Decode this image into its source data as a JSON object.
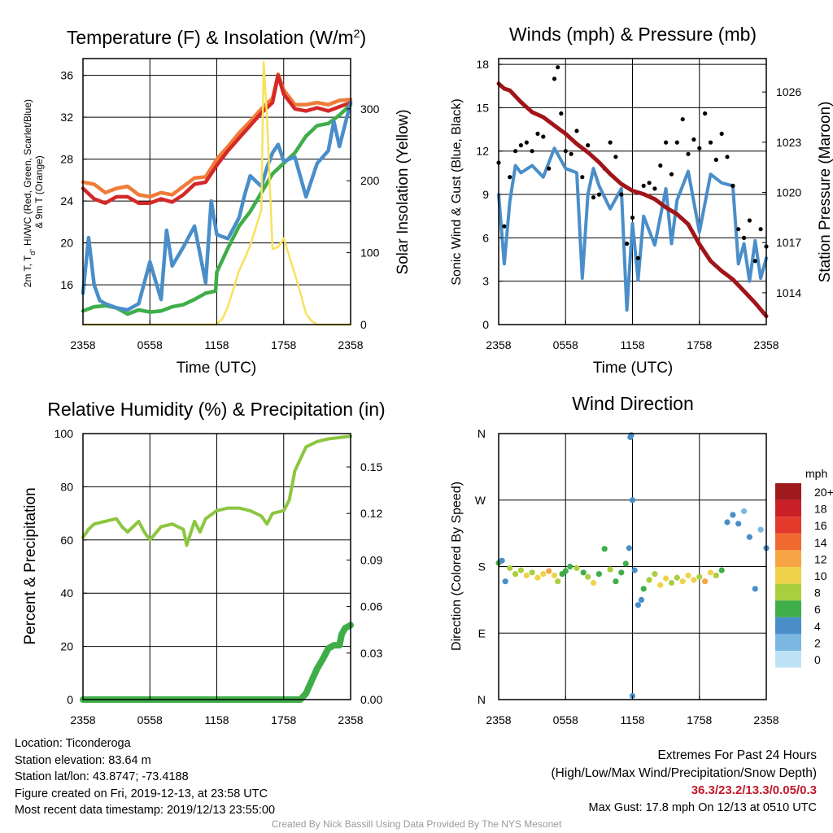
{
  "colors": {
    "red": "#d42828",
    "orange": "#f07c3a",
    "green": "#3fae49",
    "blue": "#4a8ec9",
    "yellow": "#f7e25c",
    "black": "#000000",
    "maroon": "#a1151a",
    "rh": "#8cc63f",
    "precip": "#3fae49",
    "extremes": "#c0192c",
    "credit": "#9a9a9a"
  },
  "chart_data": [
    {
      "id": "temp",
      "type": "line",
      "title": "Temperature (F) & Insolation (W/m²)",
      "xlabel": "Time (UTC)",
      "ylabel_left_lines": [
        "2m T, T",
        "HI/WC (Red, Green, Scarlet/Blue)",
        "& 9m T (Orange)"
      ],
      "ylabel_left_sub": "d",
      "ylabel_right": "Solar Insolation (Yellow)",
      "x_ticks": [
        "2358",
        "0558",
        "1158",
        "1758",
        "2358"
      ],
      "x_range": [
        0,
        24
      ],
      "y_left_range": [
        12.2,
        37.6
      ],
      "y_left_ticks": [
        16,
        20,
        24,
        28,
        32,
        36
      ],
      "y_right_range": [
        0,
        370
      ],
      "y_right_ticks": [
        0,
        100,
        200,
        300
      ],
      "series": [
        {
          "color": "orange",
          "axis": "left",
          "x": [
            0,
            1,
            2,
            3,
            4,
            5,
            6,
            7,
            8,
            9,
            10,
            11,
            12,
            13,
            14,
            15,
            16,
            17,
            17.5,
            18,
            19,
            20,
            21,
            22,
            23,
            24
          ],
          "values": [
            25.8,
            25.6,
            24.8,
            25.2,
            25.4,
            24.6,
            24.4,
            24.8,
            24.6,
            25.4,
            26.2,
            26.3,
            28.0,
            29.2,
            30.5,
            31.6,
            32.8,
            33.8,
            36.1,
            34.6,
            33.2,
            33.2,
            33.4,
            33.2,
            33.6,
            33.7
          ]
        },
        {
          "color": "red",
          "axis": "left",
          "x": [
            0,
            1,
            2,
            3,
            4,
            5,
            6,
            7,
            8,
            9,
            10,
            11,
            12,
            13,
            14,
            15,
            16,
            17,
            17.5,
            18,
            19,
            20,
            21,
            22,
            23,
            24
          ],
          "values": [
            25.2,
            24.2,
            23.8,
            24.4,
            24.4,
            23.8,
            23.8,
            24.2,
            23.9,
            24.6,
            25.6,
            25.8,
            27.4,
            28.8,
            30.0,
            31.2,
            32.4,
            33.4,
            36.0,
            34.2,
            32.8,
            32.6,
            32.9,
            32.6,
            33.0,
            33.4
          ]
        },
        {
          "color": "green",
          "axis": "left",
          "x": [
            0,
            1,
            2,
            3,
            4,
            5,
            6,
            7,
            8,
            9,
            10,
            11,
            11.9,
            12,
            13,
            14,
            15,
            16,
            17,
            18,
            19,
            20,
            21,
            22,
            23,
            24
          ],
          "values": [
            13.5,
            13.9,
            14.0,
            13.8,
            13.2,
            13.6,
            13.4,
            13.5,
            13.9,
            14.1,
            14.6,
            15.2,
            15.4,
            17.2,
            19.5,
            21.6,
            23.0,
            24.8,
            26.6,
            27.6,
            28.6,
            30.2,
            31.2,
            31.4,
            32.2,
            33.2
          ]
        },
        {
          "color": "blue",
          "axis": "left",
          "x": [
            0,
            0.5,
            1,
            1.5,
            2,
            3,
            4,
            5,
            6,
            7,
            7.5,
            8,
            9,
            10,
            11,
            11.5,
            12,
            13,
            14,
            14.5,
            15,
            16,
            16.5,
            17,
            17.5,
            18,
            19,
            20,
            21,
            22,
            22.5,
            23,
            24
          ],
          "values": [
            15.2,
            20.5,
            16.0,
            14.5,
            14.2,
            13.8,
            13.6,
            14.2,
            18.2,
            14.6,
            21.2,
            17.8,
            19.6,
            21.6,
            16.2,
            24.0,
            20.8,
            20.4,
            22.4,
            24.6,
            26.4,
            25.4,
            27.2,
            28.6,
            29.4,
            27.8,
            28.2,
            24.4,
            27.6,
            28.8,
            31.6,
            29.2,
            33.4
          ]
        },
        {
          "color": "yellow",
          "axis": "right",
          "x": [
            0,
            11.9,
            12.5,
            13,
            13.5,
            14,
            14.5,
            15,
            15.5,
            16,
            16.2,
            16.5,
            17,
            17.5,
            18,
            18.5,
            19,
            19.5,
            20,
            20.5,
            21,
            22,
            24
          ],
          "values": [
            0,
            0,
            8,
            25,
            50,
            75,
            92,
            110,
            135,
            160,
            365,
            290,
            105,
            108,
            120,
            95,
            70,
            44,
            15,
            5,
            0,
            0,
            0
          ]
        }
      ]
    },
    {
      "id": "wind",
      "type": "line",
      "title": "Winds (mph) & Pressure (mb)",
      "xlabel": "Time (UTC)",
      "ylabel_left": "Sonic Wind & Gust (Blue, Black)",
      "ylabel_right": "Station Pressure (Maroon)",
      "x_ticks": [
        "2358",
        "0558",
        "1158",
        "1758",
        "2358"
      ],
      "x_range": [
        0,
        24
      ],
      "y_left_range": [
        0,
        18.4
      ],
      "y_left_ticks": [
        0,
        3,
        6,
        9,
        12,
        15,
        18
      ],
      "y_right_range": [
        1012.1,
        1028.0
      ],
      "y_right_ticks": [
        1014,
        1017,
        1020,
        1023,
        1026
      ],
      "series": [
        {
          "color": "blue",
          "axis": "left",
          "x": [
            0,
            0.5,
            1,
            1.5,
            2,
            3,
            4,
            5,
            6,
            7,
            7.5,
            8,
            8.5,
            9,
            10,
            11,
            11.5,
            12,
            12.5,
            13,
            14,
            15,
            15.5,
            16,
            17,
            18,
            19,
            20,
            21,
            21.5,
            22,
            22.5,
            23,
            23.5,
            24
          ],
          "values": [
            9.0,
            4.2,
            8.5,
            11.0,
            10.5,
            11.0,
            10.2,
            12.2,
            10.8,
            10.5,
            3.2,
            9.0,
            10.8,
            9.6,
            8.0,
            9.4,
            1.0,
            7.0,
            3.1,
            7.5,
            5.5,
            9.4,
            5.6,
            8.6,
            10.6,
            6.4,
            10.4,
            9.8,
            9.6,
            4.2,
            5.6,
            3.0,
            5.8,
            3.2,
            4.6
          ]
        },
        {
          "color": "black",
          "axis": "left",
          "scatter": true,
          "x": [
            0,
            0.5,
            1,
            1.5,
            2,
            2.5,
            3,
            3.5,
            4,
            4.5,
            5,
            5.3,
            5.6,
            6,
            6.5,
            7,
            7.5,
            8,
            8.5,
            9,
            9.5,
            10,
            10.5,
            11,
            11.5,
            12,
            12.5,
            13,
            13.5,
            14,
            14.5,
            15,
            15.5,
            16,
            16.5,
            17,
            17.5,
            18,
            18.5,
            19,
            19.5,
            20,
            20.5,
            21,
            21.5,
            22,
            22.5,
            23,
            23.5,
            24
          ],
          "values": [
            11.2,
            6.8,
            10.2,
            12.0,
            12.4,
            12.6,
            12.0,
            13.2,
            13.0,
            10.8,
            17.0,
            17.8,
            14.6,
            12.0,
            11.8,
            13.4,
            10.2,
            12.4,
            8.8,
            9.0,
            10.8,
            12.6,
            11.6,
            9.0,
            5.6,
            7.4,
            4.6,
            9.6,
            9.8,
            9.4,
            11.0,
            12.6,
            10.4,
            12.6,
            14.2,
            11.8,
            12.8,
            12.2,
            14.6,
            12.6,
            11.4,
            13.2,
            11.6,
            9.6,
            6.6,
            6.0,
            7.2,
            4.4,
            6.6,
            5.4
          ]
        },
        {
          "color": "maroon",
          "axis": "right",
          "x": [
            0,
            0.5,
            1,
            2,
            3,
            4,
            5,
            6,
            7,
            8,
            9,
            10,
            11,
            12,
            13,
            14,
            15,
            16,
            17,
            18,
            19,
            20,
            21,
            22,
            23,
            24
          ],
          "values": [
            1026.5,
            1026.2,
            1026.1,
            1025.4,
            1024.8,
            1024.5,
            1024.0,
            1023.5,
            1022.9,
            1022.4,
            1021.8,
            1021.1,
            1020.5,
            1020.1,
            1019.9,
            1019.6,
            1019.1,
            1018.7,
            1018.1,
            1016.9,
            1015.9,
            1015.3,
            1014.8,
            1014.1,
            1013.4,
            1012.6
          ]
        }
      ]
    },
    {
      "id": "rh",
      "type": "line",
      "title": "Relative Humidity (%) & Precipitation (in)",
      "xlabel": "",
      "ylabel_left": "Percent & Precipitation",
      "ylabel_right": "",
      "x_ticks": [
        "2358",
        "0558",
        "1158",
        "1758",
        "2358"
      ],
      "x_range": [
        0,
        24
      ],
      "y_left_range": [
        0,
        100
      ],
      "y_left_ticks": [
        0,
        20,
        40,
        60,
        80,
        100
      ],
      "y_right_range": [
        0,
        0.1715
      ],
      "y_right_ticks": [
        "0.00",
        "0.03",
        "0.06",
        "0.09",
        "0.12",
        "0.15"
      ],
      "series": [
        {
          "color": "rh",
          "axis": "left",
          "x": [
            0,
            0.5,
            1,
            2,
            3,
            3.5,
            4,
            5,
            5.5,
            6,
            7,
            8,
            9,
            9.3,
            10,
            10.5,
            11,
            12,
            13,
            14,
            15,
            16,
            16.5,
            17,
            18,
            18.5,
            19,
            20,
            21,
            22,
            23,
            24
          ],
          "values": [
            61,
            64,
            66,
            67,
            68,
            65,
            63,
            67,
            63,
            60,
            65,
            66,
            64,
            58,
            67,
            63,
            68,
            71,
            72,
            72,
            71,
            69,
            66,
            70,
            71,
            75,
            86,
            95,
            97,
            98,
            98.5,
            99
          ]
        },
        {
          "color": "precip",
          "axis": "right",
          "thick": true,
          "x": [
            0,
            19.5,
            20,
            20.5,
            21,
            21.5,
            22,
            22.5,
            23,
            23.2,
            23.5,
            24
          ],
          "values": [
            0,
            0,
            0.004,
            0.012,
            0.02,
            0.026,
            0.033,
            0.035,
            0.035,
            0.042,
            0.046,
            0.048
          ]
        }
      ]
    },
    {
      "id": "dir",
      "type": "scatter",
      "title": "Wind Direction",
      "xlabel": "",
      "ylabel_left": "Direction (Colored By Speed)",
      "x_ticks": [
        "2358",
        "0558",
        "1158",
        "1758",
        "2358"
      ],
      "x_range": [
        0,
        24
      ],
      "y_range": [
        0,
        360
      ],
      "y_ticks": [
        "N",
        "E",
        "S",
        "W",
        "N"
      ],
      "legend": {
        "title": "mph",
        "labels": [
          "20+",
          "18",
          "16",
          "14",
          "12",
          "10",
          "8",
          "6",
          "4",
          "2",
          "0"
        ],
        "colors": [
          "#9e1a1c",
          "#c91f26",
          "#e33a2c",
          "#f06a30",
          "#f7a544",
          "#f0d24a",
          "#a9cf3e",
          "#3fae49",
          "#4a8ec9",
          "#7cb8e2",
          "#bfe3f6"
        ]
      },
      "points": [
        [
          0,
          185,
          5
        ],
        [
          0.3,
          188,
          3
        ],
        [
          0.6,
          160,
          3
        ],
        [
          1,
          178,
          7
        ],
        [
          1.5,
          170,
          7
        ],
        [
          2,
          175,
          8
        ],
        [
          2.5,
          168,
          10
        ],
        [
          3,
          172,
          8
        ],
        [
          3.5,
          165,
          10
        ],
        [
          4,
          170,
          9
        ],
        [
          4.5,
          174,
          12
        ],
        [
          5,
          168,
          9
        ],
        [
          5.3,
          160,
          8
        ],
        [
          5.7,
          170,
          6
        ],
        [
          6,
          174,
          6
        ],
        [
          6.4,
          180,
          5
        ],
        [
          7,
          178,
          8
        ],
        [
          7.6,
          172,
          5
        ],
        [
          8,
          166,
          7
        ],
        [
          8.5,
          158,
          10
        ],
        [
          9,
          170,
          6
        ],
        [
          9.5,
          204,
          6
        ],
        [
          10,
          176,
          8
        ],
        [
          10.5,
          160,
          6
        ],
        [
          11,
          172,
          5
        ],
        [
          11.4,
          184,
          6
        ],
        [
          11.7,
          205,
          4
        ],
        [
          11.8,
          355,
          4
        ],
        [
          11.9,
          358,
          3
        ],
        [
          12,
          5,
          3
        ],
        [
          12,
          270,
          4
        ],
        [
          12.2,
          175,
          4
        ],
        [
          12.5,
          128,
          3
        ],
        [
          12.8,
          135,
          4
        ],
        [
          13,
          150,
          5
        ],
        [
          13.5,
          162,
          7
        ],
        [
          14,
          170,
          8
        ],
        [
          14.5,
          155,
          9
        ],
        [
          15,
          164,
          10
        ],
        [
          15.5,
          158,
          8
        ],
        [
          16,
          165,
          7
        ],
        [
          16.5,
          160,
          10
        ],
        [
          17,
          168,
          9
        ],
        [
          17.5,
          162,
          10
        ],
        [
          18,
          166,
          7
        ],
        [
          18.5,
          160,
          11
        ],
        [
          19,
          172,
          9
        ],
        [
          19.5,
          168,
          7
        ],
        [
          20,
          175,
          5
        ],
        [
          20.5,
          240,
          4
        ],
        [
          21,
          250,
          3
        ],
        [
          21.5,
          238,
          4
        ],
        [
          22,
          255,
          2
        ],
        [
          22.5,
          220,
          3
        ],
        [
          23,
          150,
          3
        ],
        [
          23.5,
          230,
          2
        ],
        [
          24,
          205,
          4
        ]
      ]
    }
  ],
  "footer": {
    "location": "Location: Ticonderoga",
    "elevation": "Station elevation: 83.64 m",
    "latlon": "Station lat/lon: 43.8747; -73.4188",
    "created": "Figure created on Fri, 2019-12-13, at 23:58 UTC",
    "recent": "Most recent data timestamp: 2019/12/13 23:55:00"
  },
  "extremes": {
    "title": "Extremes For Past 24 Hours",
    "subtitle": "(High/Low/Max Wind/Precipitation/Snow Depth)",
    "values": "36.3/23.2/13.3/0.05/0.3",
    "gust": "Max Gust: 17.8 mph On 12/13 at 0510 UTC"
  },
  "credit": "Created By Nick Bassill Using Data Provided By The NYS Mesonet"
}
